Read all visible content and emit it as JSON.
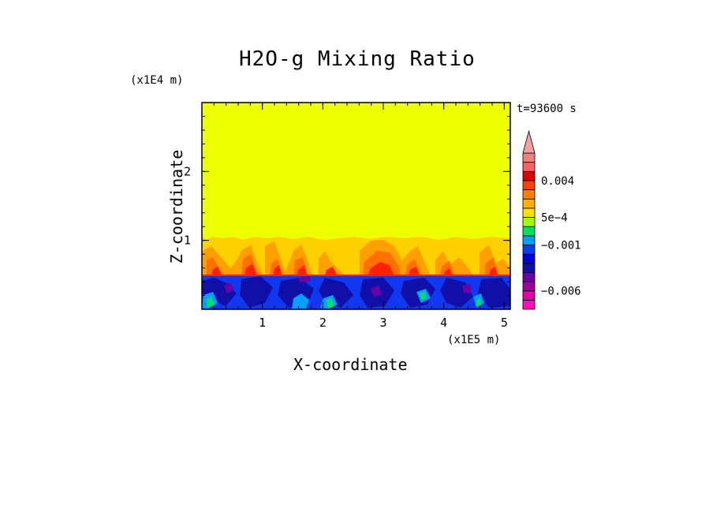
{
  "chart_data": {
    "type": "heatmap",
    "title": "H2O-g Mixing Ratio",
    "xlabel": "X-coordinate",
    "ylabel": "Z-coordinate",
    "x_unit": "(x1E5 m)",
    "y_unit": "(x1E4 m)",
    "timestamp": "t=93600 s",
    "xlim": [
      0,
      5.1
    ],
    "ylim": [
      0,
      3
    ],
    "x_ticks": [
      1,
      2,
      3,
      4,
      5
    ],
    "y_ticks": [
      1,
      2
    ],
    "fields": {
      "upper_layer_value": "≈0 (yellow)",
      "boundary_layer_top_z": 0.5,
      "plume_top_z": 1.05,
      "description_values": "negative anomalies (-0.001 to -0.008) below z≈0.5, positive anomalies (5e-4 to 0.004) in plumes between z≈0.5 and z≈1.05"
    },
    "colorbar": {
      "levels": [
        "-0.008",
        "-0.007",
        "-0.006",
        "-0.005",
        "-0.004",
        "-0.003",
        "-0.002",
        "-0.001",
        "-5e-4",
        "0",
        "5e-4",
        "0.001",
        "0.002",
        "0.003",
        "0.004",
        "0.005",
        "0.006",
        "overflow"
      ],
      "tick_labels": [
        "0.004",
        "5e-4",
        "-0.001",
        "-0.006"
      ],
      "colors": [
        "#ff10b0",
        "#e000a0",
        "#9b009b",
        "#6a00a8",
        "#1010a8",
        "#0000d8",
        "#0a3cf0",
        "#00a0ff",
        "#00e060",
        "#a0ff00",
        "#ffe000",
        "#ffb000",
        "#ff8000",
        "#ff4000",
        "#e00000",
        "#ff6060",
        "#f08080",
        "#f4a0a0"
      ]
    }
  },
  "colors": {
    "background": "#ffffff",
    "yellow": "#eeff00",
    "orange": "#ffa600",
    "red": "#ff2000",
    "blue": "#1038f0",
    "darkblue": "#1010a8"
  }
}
